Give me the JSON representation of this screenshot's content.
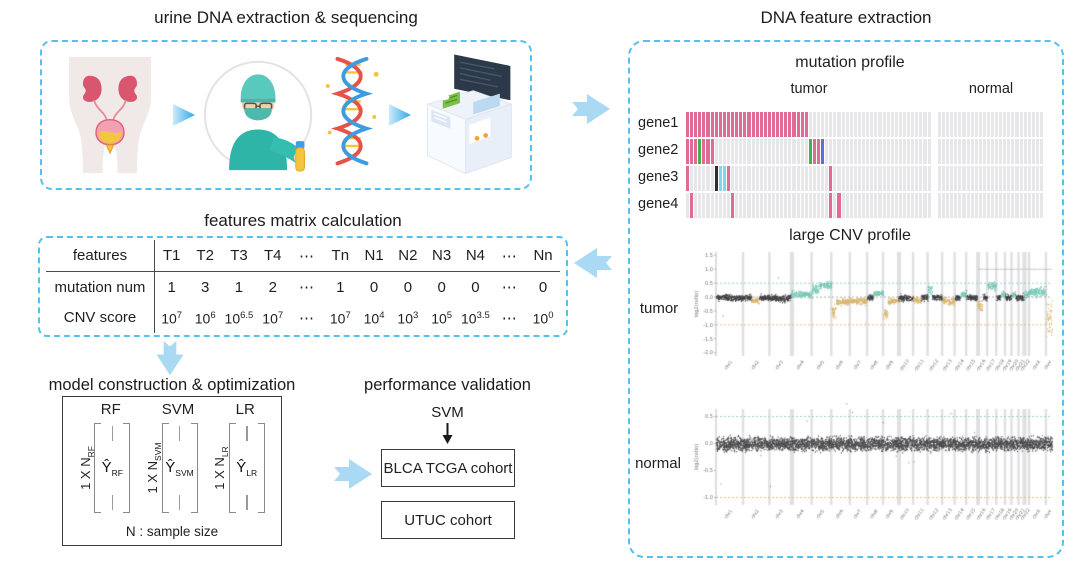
{
  "extraction": {
    "title": "urine DNA extraction & sequencing",
    "icons": [
      "urinary-system",
      "scientist-with-sample",
      "dna-helix",
      "sequencer-machine"
    ]
  },
  "matrix_table": {
    "title": "features matrix calculation",
    "corner_label": "features",
    "columns": [
      "T1",
      "T2",
      "T3",
      "T4",
      "⋯",
      "Tn",
      "N1",
      "N2",
      "N3",
      "N4",
      "⋯",
      "Nn"
    ],
    "rows": [
      {
        "label": "mutation num",
        "type": "plain",
        "values": [
          "1",
          "3",
          "1",
          "2",
          "⋯",
          "1",
          "0",
          "0",
          "0",
          "0",
          "⋯",
          "0"
        ]
      },
      {
        "label": "CNV score",
        "type": "power",
        "base": "10",
        "values": [
          "7",
          "6",
          "6.5",
          "7",
          "⋯",
          "7",
          "4",
          "3",
          "5",
          "3.5",
          "⋯",
          "0"
        ]
      }
    ]
  },
  "models": {
    "title": "model construction & optimization",
    "note": "N :  sample size",
    "items": [
      {
        "name": "RF",
        "dim": "1 X N",
        "dim_sub": "RF",
        "y": "Ŷ",
        "y_sub": "RF"
      },
      {
        "name": "SVM",
        "dim": "1 X N",
        "dim_sub": "SVM",
        "y": "Ŷ",
        "y_sub": "SVM"
      },
      {
        "name": "LR",
        "dim": "1 X N",
        "dim_sub": "LR",
        "y": "Ŷ",
        "y_sub": "LR"
      }
    ]
  },
  "validation": {
    "title": "performance validation",
    "selected_model": "SVM",
    "cohorts": [
      "BLCA TCGA cohort",
      "UTUC cohort"
    ]
  },
  "feature_extraction": {
    "title": "DNA feature extraction",
    "mutation_profile": {
      "title": "mutation profile",
      "group_labels": {
        "tumor": "tumor",
        "normal": "normal"
      },
      "genes": [
        "gene1",
        "gene2",
        "gene3",
        "gene4"
      ],
      "tumor_columns": 60,
      "normal_columns": 26,
      "colors": {
        "base": "#e7e7ea",
        "pink": "#e06b95",
        "green": "#43b04f",
        "blue": "#5d6fd2",
        "black": "#2d2d2d",
        "cyan": "#7cd7e8"
      },
      "marks": {
        "gene1": [
          [
            0,
            29,
            "pink"
          ]
        ],
        "gene2": [
          [
            0,
            2,
            "pink"
          ],
          [
            3,
            3,
            "green"
          ],
          [
            4,
            6,
            "pink"
          ],
          [
            30,
            30,
            "green"
          ],
          [
            31,
            32,
            "pink"
          ],
          [
            33,
            33,
            "blue"
          ]
        ],
        "gene3": [
          [
            0,
            0,
            "pink"
          ],
          [
            7,
            7,
            "black"
          ],
          [
            8,
            9,
            "cyan"
          ],
          [
            10,
            10,
            "pink"
          ],
          [
            35,
            35,
            "pink"
          ]
        ],
        "gene4": [
          [
            1,
            1,
            "pink"
          ],
          [
            11,
            11,
            "pink"
          ],
          [
            35,
            35,
            "pink"
          ],
          [
            37,
            37,
            "pink"
          ]
        ]
      }
    },
    "cnv_profile": {
      "title": "large CNV profile",
      "tumor_label": "tumor",
      "normal_label": "normal"
    }
  },
  "chart_data": [
    {
      "type": "scatter",
      "name": "tumor large CNV profile",
      "ylabel": "log2(ratio)",
      "ylim": [
        -2.0,
        1.5
      ],
      "yticks": [
        1.5,
        1.0,
        0.5,
        0.0,
        -0.5,
        -1.0,
        -1.5,
        -2.0
      ],
      "hlines": [
        {
          "y": 0.5,
          "color": "#7fc9bc"
        },
        {
          "y": 0.0,
          "color": "#9a9a9a"
        },
        {
          "y": -1.0,
          "color": "#e4b066"
        }
      ],
      "partial_line": {
        "y": 1.0,
        "from": 0.78,
        "color": "#bcbcbc"
      },
      "x_categories": [
        "chr1",
        "chr2",
        "chr3",
        "chr4",
        "chr5",
        "chr6",
        "chr7",
        "chr8",
        "chr9",
        "chr10",
        "chr11",
        "chr12",
        "chr13",
        "chr14",
        "chr15",
        "chr16",
        "chr17",
        "chr18",
        "chr19",
        "chr20",
        "chr21",
        "chr22",
        "chrX",
        "chrY"
      ],
      "chr_widths": [
        8.0,
        7.8,
        6.4,
        6.1,
        5.8,
        5.5,
        5.1,
        4.7,
        4.5,
        4.4,
        4.3,
        4.3,
        3.7,
        3.4,
        3.3,
        2.9,
        2.7,
        2.6,
        1.9,
        2.1,
        1.5,
        1.6,
        5.0,
        1.8
      ],
      "point_colors": {
        "dark": "#3f3f42",
        "teal": "#78c8b6",
        "tan": "#d8b56e"
      },
      "segments": [
        [
          [
            0.55,
            "dark",
            0,
            0.06
          ],
          [
            0.45,
            "dark",
            -0.03,
            0.06
          ]
        ],
        [
          [
            0.3,
            "dark",
            0,
            0.06
          ],
          [
            0.3,
            "tan",
            -0.1,
            0.06
          ],
          [
            0.4,
            "dark",
            0,
            0.06
          ]
        ],
        [
          [
            1,
            "dark",
            -0.02,
            0.07
          ]
        ],
        [
          [
            1,
            "teal",
            0.12,
            0.07
          ]
        ],
        [
          [
            0.35,
            "teal",
            0.3,
            0.09
          ],
          [
            0.65,
            "teal",
            0.45,
            0.07
          ]
        ],
        [
          [
            0.25,
            "tan",
            -0.5,
            0.12
          ],
          [
            0.75,
            "tan",
            -0.15,
            0.06
          ]
        ],
        [
          [
            1,
            "tan",
            -0.12,
            0.07
          ]
        ],
        [
          [
            0.4,
            "dark",
            0,
            0.06
          ],
          [
            0.6,
            "teal",
            0.15,
            0.06
          ]
        ],
        [
          [
            0.3,
            "tan",
            -0.6,
            0.1
          ],
          [
            0.7,
            "tan",
            -0.12,
            0.06
          ]
        ],
        [
          [
            1,
            "dark",
            -0.02,
            0.06
          ]
        ],
        [
          [
            0.55,
            "tan",
            -0.1,
            0.06
          ],
          [
            0.45,
            "dark",
            0,
            0.06
          ]
        ],
        [
          [
            0.3,
            "teal",
            0.25,
            0.12
          ],
          [
            0.7,
            "dark",
            0,
            0.06
          ]
        ],
        [
          [
            1,
            "tan",
            -0.12,
            0.08
          ]
        ],
        [
          [
            0.5,
            "dark",
            0,
            0.06
          ],
          [
            0.5,
            "teal",
            0.1,
            0.06
          ]
        ],
        [
          [
            1,
            "dark",
            0,
            0.06
          ]
        ],
        [
          [
            0.5,
            "tan",
            -0.3,
            0.12
          ],
          [
            0.5,
            "dark",
            0,
            0.06
          ]
        ],
        [
          [
            1,
            "teal",
            0.42,
            0.08
          ]
        ],
        [
          [
            0.5,
            "dark",
            0,
            0.06
          ],
          [
            0.5,
            "teal",
            0.1,
            0.06
          ]
        ],
        [
          [
            1,
            "dark",
            0,
            0.07
          ]
        ],
        [
          [
            0.5,
            "teal",
            0.12,
            0.07
          ],
          [
            0.5,
            "dark",
            0,
            0.06
          ]
        ],
        [
          [
            1,
            "dark",
            0,
            0.07
          ]
        ],
        [
          [
            1,
            "teal",
            0.1,
            0.08
          ]
        ],
        [
          [
            1,
            "teal",
            0.2,
            0.1
          ]
        ],
        [
          [
            1,
            "tan",
            -0.75,
            0.4
          ]
        ]
      ]
    },
    {
      "type": "scatter",
      "name": "normal large CNV profile",
      "ylabel": "log2(ratio)",
      "ylim": [
        -1.0,
        0.5
      ],
      "yticks": [
        0.5,
        0.0,
        -0.5,
        -1.0
      ],
      "hlines": [
        {
          "y": 0.5,
          "color": "#7fc9bc"
        },
        {
          "y": -1.0,
          "color": "#e4b066"
        }
      ],
      "x_categories": [
        "chr1",
        "chr2",
        "chr3",
        "chr4",
        "chr5",
        "chr6",
        "chr7",
        "chr8",
        "chr9",
        "chr10",
        "chr11",
        "chr12",
        "chr13",
        "chr14",
        "chr15",
        "chr16",
        "chr17",
        "chr18",
        "chr19",
        "chr20",
        "chr21",
        "chr22",
        "chrX",
        "chrY"
      ],
      "chr_widths": [
        8.0,
        7.8,
        6.4,
        6.1,
        5.8,
        5.5,
        5.1,
        4.7,
        4.5,
        4.4,
        4.3,
        4.3,
        3.7,
        3.4,
        3.3,
        2.9,
        2.7,
        2.6,
        1.9,
        2.1,
        1.5,
        1.6,
        5.0,
        1.8
      ],
      "point_colors": {
        "dark": "#4a4a4d"
      },
      "segments_uniform": [
        1,
        "dark",
        0,
        0.07
      ]
    }
  ]
}
